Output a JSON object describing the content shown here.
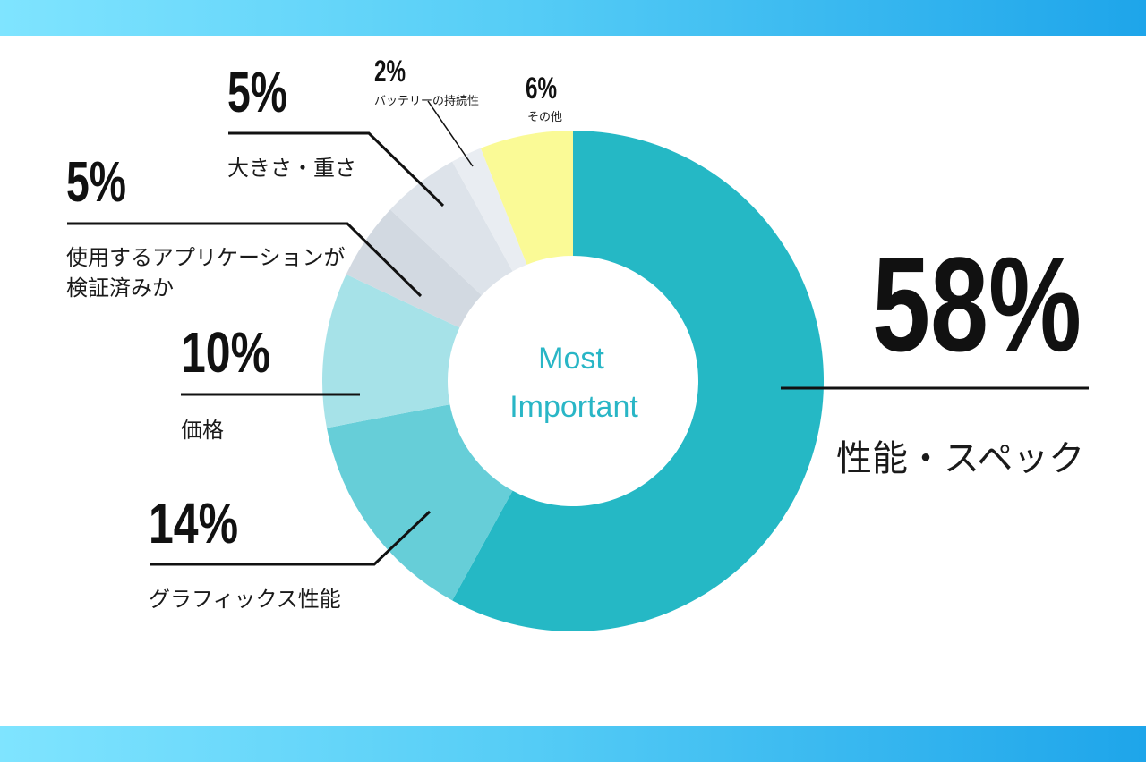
{
  "chart_data": {
    "type": "pie",
    "center_label": [
      "Most",
      "Important"
    ],
    "categories": [
      "性能・スペック",
      "グラフィックス性能",
      "価格",
      "使用するアプリケーションが検証済みか",
      "大きさ・重さ",
      "バッテリーの持続性",
      "その他"
    ],
    "values": [
      58,
      14,
      10,
      5,
      5,
      2,
      6
    ],
    "value_labels": [
      "58%",
      "14%",
      "10%",
      "5%",
      "5%",
      "2%",
      "6%"
    ],
    "label_lines": [
      [
        "性能・スペック"
      ],
      [
        "グラフィックス性能"
      ],
      [
        "価格"
      ],
      [
        "使用するアプリケーションが",
        "検証済みか"
      ],
      [
        "大きさ・重さ"
      ],
      [
        "バッテリーの持続性"
      ],
      [
        "その他"
      ]
    ],
    "colors": [
      "#25b8c5",
      "#66ced8",
      "#a6e2e8",
      "#d2d9e1",
      "#dde3ea",
      "#e9edf2",
      "#fafa96"
    ],
    "start_angle_deg": 0,
    "direction": "clockwise",
    "legend": "none"
  }
}
